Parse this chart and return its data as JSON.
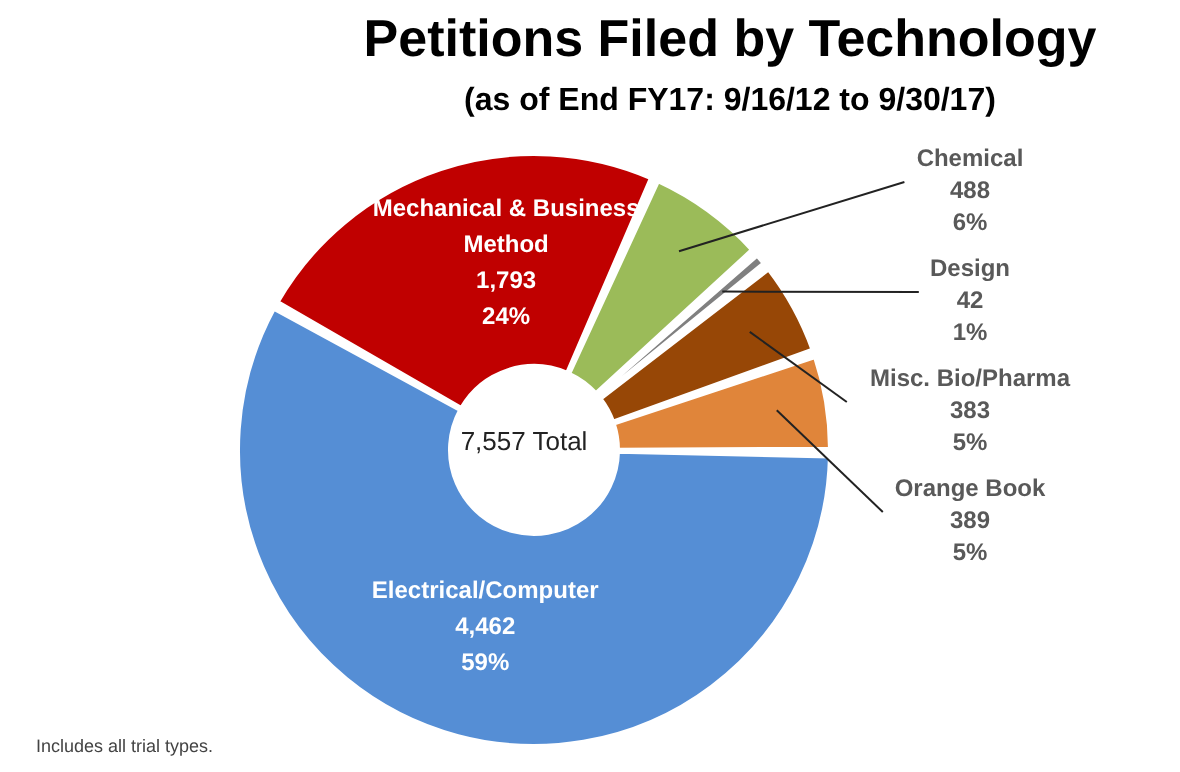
{
  "chart_data": {
    "type": "donut",
    "title": "Petitions Filed by Technology",
    "subtitle": "(as of End FY17: 9/16/12 to 9/30/17)",
    "categories": [
      "Mechanical & Business Method",
      "Chemical",
      "Design",
      "Misc. Bio/Pharma",
      "Orange Book",
      "Electrical/Computer"
    ],
    "values": [
      1793,
      488,
      42,
      383,
      389,
      4462
    ],
    "colors": [
      "#c00000",
      "#9bbb59",
      "#808080",
      "#974706",
      "#e0853a",
      "#558ed5"
    ],
    "value_labels": [
      "1,793\n24%",
      "488\n6%",
      "42\n1%",
      "383\n5%",
      "389\n5%",
      "4,462\n59%"
    ],
    "annotations": [
      "7,557 Total",
      "Includes all trial types."
    ],
    "legend": false
  }
}
